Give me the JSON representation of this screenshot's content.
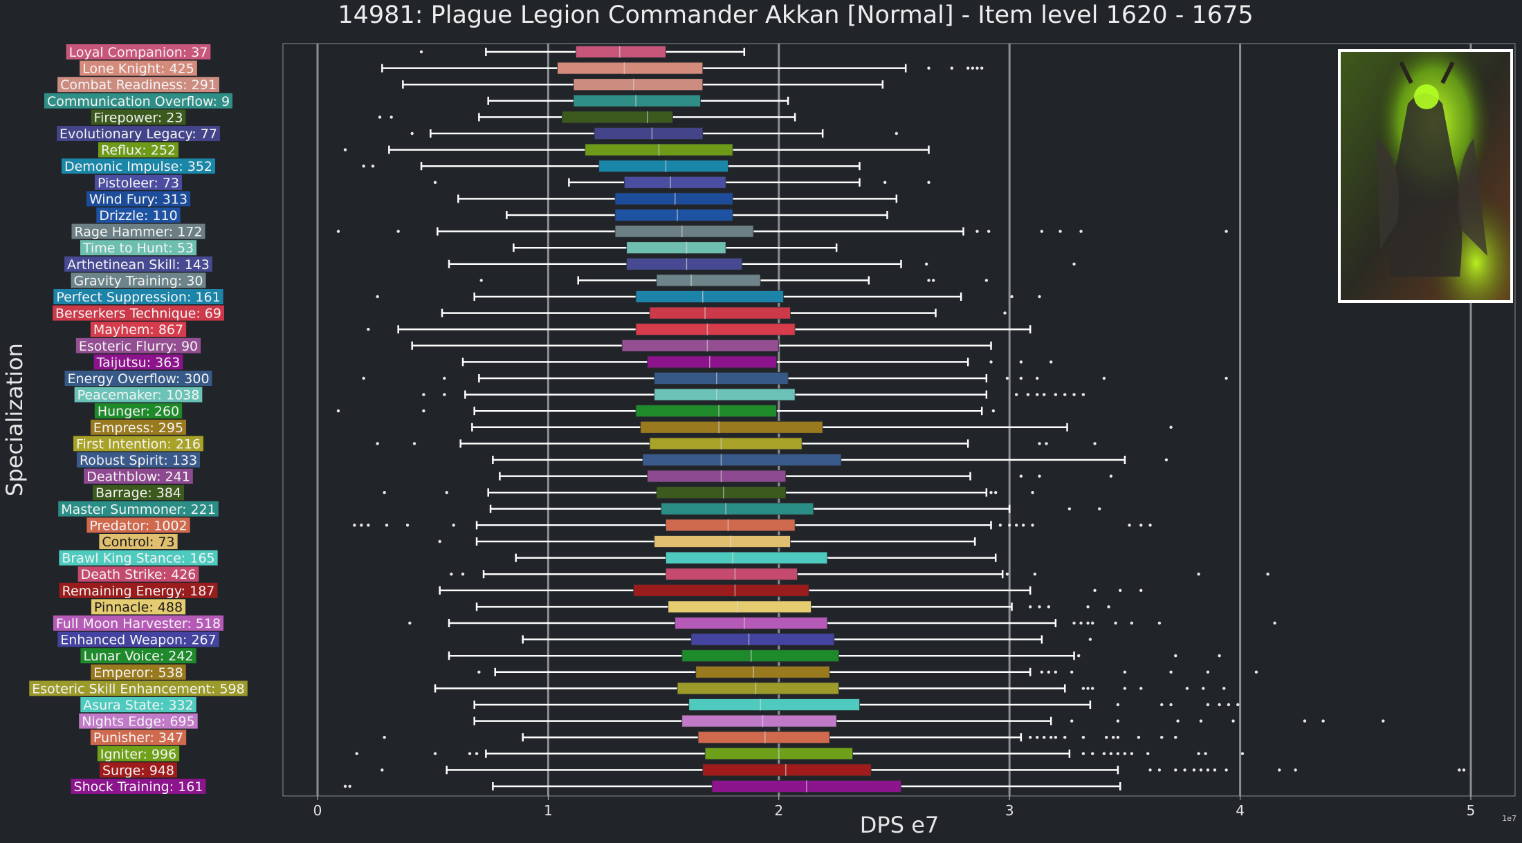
{
  "chart_data": {
    "type": "box",
    "title": "14981: Plague Legion Commander Akkan [Normal] - Item level 1620 - 1675",
    "xlabel": "DPS e7",
    "ylabel": "Specialization",
    "x_multiplier_label": "1e7",
    "xlim": [
      -0.15,
      5.2
    ],
    "xticks": [
      0,
      1,
      2,
      3,
      4,
      5
    ],
    "grid": "vertical",
    "image": "boss-portrait",
    "series": [
      {
        "label": "Loyal Companion: 37",
        "color": "#c8557a",
        "whislo": 0.73,
        "q1": 1.12,
        "med": 1.31,
        "q3": 1.51,
        "whishi": 1.85,
        "fliers": [
          0.45
        ]
      },
      {
        "label": "Lone Knight: 425",
        "color": "#d48b7c",
        "whislo": 0.28,
        "q1": 1.04,
        "med": 1.33,
        "q3": 1.67,
        "whishi": 2.55,
        "fliers": [
          2.65,
          2.75,
          2.82,
          2.84,
          2.86,
          2.88
        ]
      },
      {
        "label": "Combat Readiness: 291",
        "color": "#cd8c80",
        "whislo": 0.37,
        "q1": 1.11,
        "med": 1.37,
        "q3": 1.67,
        "whishi": 2.45,
        "fliers": []
      },
      {
        "label": "Communication Overflow: 9",
        "color": "#2f8f86",
        "whislo": 0.74,
        "q1": 1.11,
        "med": 1.38,
        "q3": 1.66,
        "whishi": 2.04,
        "fliers": []
      },
      {
        "label": "Firepower: 23",
        "color": "#3c5a1e",
        "whislo": 0.7,
        "q1": 1.06,
        "med": 1.43,
        "q3": 1.54,
        "whishi": 2.07,
        "fliers": [
          0.27,
          0.32
        ]
      },
      {
        "label": "Evolutionary Legacy: 77",
        "color": "#44448a",
        "whislo": 0.49,
        "q1": 1.2,
        "med": 1.45,
        "q3": 1.67,
        "whishi": 2.19,
        "fliers": [
          0.41,
          2.51
        ]
      },
      {
        "label": "Reflux: 252",
        "color": "#6e9a1a",
        "whislo": 0.31,
        "q1": 1.16,
        "med": 1.48,
        "q3": 1.8,
        "whishi": 2.65,
        "fliers": [
          0.12
        ]
      },
      {
        "label": "Demonic Impulse: 352",
        "color": "#1a86a8",
        "whislo": 0.45,
        "q1": 1.22,
        "med": 1.51,
        "q3": 1.78,
        "whishi": 2.35,
        "fliers": [
          0.2,
          0.24
        ]
      },
      {
        "label": "Pistoleer: 73",
        "color": "#4b4ea0",
        "whislo": 1.09,
        "q1": 1.33,
        "med": 1.53,
        "q3": 1.77,
        "whishi": 2.35,
        "fliers": [
          0.51,
          2.46,
          2.65
        ]
      },
      {
        "label": "Wind Fury: 313",
        "color": "#1d4d9a",
        "whislo": 0.61,
        "q1": 1.29,
        "med": 1.55,
        "q3": 1.8,
        "whishi": 2.51,
        "fliers": []
      },
      {
        "label": "Drizzle: 110",
        "color": "#1e52a2",
        "whislo": 0.82,
        "q1": 1.29,
        "med": 1.56,
        "q3": 1.8,
        "whishi": 2.47,
        "fliers": []
      },
      {
        "label": "Rage Hammer: 172",
        "color": "#6b7f85",
        "whislo": 0.52,
        "q1": 1.29,
        "med": 1.58,
        "q3": 1.89,
        "whishi": 2.8,
        "fliers": [
          0.09,
          0.35,
          2.86,
          2.91,
          3.14,
          3.22,
          3.31,
          3.94
        ]
      },
      {
        "label": "Time to Hunt: 53",
        "color": "#6fbfb0",
        "whislo": 0.85,
        "q1": 1.34,
        "med": 1.6,
        "q3": 1.77,
        "whishi": 2.25,
        "fliers": []
      },
      {
        "label": "Arthetinean Skill: 143",
        "color": "#474a92",
        "whislo": 0.57,
        "q1": 1.34,
        "med": 1.6,
        "q3": 1.84,
        "whishi": 2.53,
        "fliers": [
          2.64,
          3.28
        ]
      },
      {
        "label": "Gravity Training: 30",
        "color": "#6d858a",
        "whislo": 1.13,
        "q1": 1.47,
        "med": 1.62,
        "q3": 1.92,
        "whishi": 2.39,
        "fliers": [
          0.71,
          2.65,
          2.67,
          2.9
        ]
      },
      {
        "label": "Perfect Suppression: 161",
        "color": "#1b84a8",
        "whislo": 0.68,
        "q1": 1.38,
        "med": 1.67,
        "q3": 2.02,
        "whishi": 2.79,
        "fliers": [
          0.26,
          3.01,
          3.13
        ]
      },
      {
        "label": "Berserkers Technique: 69",
        "color": "#cc3a4a",
        "whislo": 0.54,
        "q1": 1.44,
        "med": 1.68,
        "q3": 2.05,
        "whishi": 2.68,
        "fliers": [
          2.98
        ]
      },
      {
        "label": "Mayhem: 867",
        "color": "#d63c4c",
        "whislo": 0.35,
        "q1": 1.38,
        "med": 1.69,
        "q3": 2.07,
        "whishi": 3.09,
        "fliers": [
          0.22
        ]
      },
      {
        "label": "Esoteric Flurry: 90",
        "color": "#944e92",
        "whislo": 0.41,
        "q1": 1.32,
        "med": 1.69,
        "q3": 2.0,
        "whishi": 2.92,
        "fliers": []
      },
      {
        "label": "Taijutsu: 363",
        "color": "#8c138c",
        "whislo": 0.63,
        "q1": 1.43,
        "med": 1.7,
        "q3": 1.99,
        "whishi": 2.82,
        "fliers": [
          2.92,
          3.05,
          3.18
        ]
      },
      {
        "label": "Energy Overflow: 300",
        "color": "#375988",
        "whislo": 0.7,
        "q1": 1.46,
        "med": 1.73,
        "q3": 2.04,
        "whishi": 2.9,
        "fliers": [
          0.2,
          0.55,
          2.99,
          3.05,
          3.12,
          3.41,
          3.94
        ]
      },
      {
        "label": "Peacemaker: 1038",
        "color": "#6bc3b8",
        "whislo": 0.64,
        "q1": 1.46,
        "med": 1.73,
        "q3": 2.07,
        "whishi": 2.9,
        "fliers": [
          0.46,
          0.55,
          3.03,
          3.08,
          3.12,
          3.15,
          3.2,
          3.24,
          3.28,
          3.32
        ]
      },
      {
        "label": "Hunger: 260",
        "color": "#1e8a2a",
        "whislo": 0.68,
        "q1": 1.38,
        "med": 1.74,
        "q3": 1.99,
        "whishi": 2.88,
        "fliers": [
          0.09,
          0.46,
          2.93
        ]
      },
      {
        "label": "Empress: 295",
        "color": "#9a7a1e",
        "whislo": 0.67,
        "q1": 1.4,
        "med": 1.74,
        "q3": 2.19,
        "whishi": 3.25,
        "fliers": [
          3.7
        ]
      },
      {
        "label": "First Intention: 216",
        "color": "#a8a228",
        "whislo": 0.62,
        "q1": 1.44,
        "med": 1.75,
        "q3": 2.1,
        "whishi": 2.82,
        "fliers": [
          0.26,
          0.42,
          3.13,
          3.16,
          3.37
        ]
      },
      {
        "label": "Robust Spirit: 133",
        "color": "#3a5a8c",
        "whislo": 0.76,
        "q1": 1.41,
        "med": 1.75,
        "q3": 2.27,
        "whishi": 3.5,
        "fliers": [
          3.68
        ]
      },
      {
        "label": "Deathblow: 241",
        "color": "#8e4a90",
        "whislo": 0.79,
        "q1": 1.43,
        "med": 1.75,
        "q3": 2.03,
        "whishi": 2.83,
        "fliers": [
          3.05,
          3.13,
          3.44
        ]
      },
      {
        "label": "Barrage: 384",
        "color": "#3c5a1e",
        "whislo": 0.74,
        "q1": 1.47,
        "med": 1.76,
        "q3": 2.03,
        "whishi": 2.9,
        "fliers": [
          0.29,
          0.56,
          2.92,
          2.94,
          3.1
        ]
      },
      {
        "label": "Master Summoner: 221",
        "color": "#2b8e86",
        "whislo": 0.75,
        "q1": 1.49,
        "med": 1.77,
        "q3": 2.15,
        "whishi": 3.0,
        "fliers": [
          3.26,
          3.39
        ]
      },
      {
        "label": "Predator: 1002",
        "color": "#d06a4e",
        "whislo": 0.69,
        "q1": 1.51,
        "med": 1.78,
        "q3": 2.07,
        "whishi": 2.92,
        "fliers": [
          0.16,
          0.19,
          0.22,
          0.3,
          0.39,
          0.59,
          2.96,
          3.0,
          3.03,
          3.06,
          3.1,
          3.52,
          3.57,
          3.61
        ]
      },
      {
        "label": "Control: 73",
        "color": "#e0c070",
        "whislo": 0.69,
        "q1": 1.46,
        "med": 1.79,
        "q3": 2.05,
        "whishi": 2.85,
        "fliers": [
          0.53
        ]
      },
      {
        "label": "Brawl King Stance: 165",
        "color": "#4ecbbe",
        "whislo": 0.86,
        "q1": 1.51,
        "med": 1.8,
        "q3": 2.21,
        "whishi": 2.94,
        "fliers": []
      },
      {
        "label": "Death Strike: 426",
        "color": "#c44a6e",
        "whislo": 0.72,
        "q1": 1.51,
        "med": 1.81,
        "q3": 2.08,
        "whishi": 2.97,
        "fliers": [
          0.58,
          0.63,
          2.99,
          3.11,
          3.82,
          4.12
        ]
      },
      {
        "label": "Remaining Energy: 187",
        "color": "#9a1c1c",
        "whislo": 0.53,
        "q1": 1.37,
        "med": 1.81,
        "q3": 2.13,
        "whishi": 3.09,
        "fliers": [
          3.37,
          3.48,
          3.57
        ]
      },
      {
        "label": "Pinnacle: 488",
        "color": "#e6cc70",
        "whislo": 0.69,
        "q1": 1.52,
        "med": 1.82,
        "q3": 2.14,
        "whishi": 3.01,
        "fliers": [
          3.09,
          3.13,
          3.17,
          3.34,
          3.43
        ]
      },
      {
        "label": "Full Moon Harvester: 518",
        "color": "#b65ab8",
        "whislo": 0.57,
        "q1": 1.55,
        "med": 1.85,
        "q3": 2.21,
        "whishi": 3.2,
        "fliers": [
          0.4,
          3.28,
          3.31,
          3.34,
          3.36,
          3.46,
          3.53,
          3.65,
          4.15
        ]
      },
      {
        "label": "Enhanced Weapon: 267",
        "color": "#4444a0",
        "whislo": 0.89,
        "q1": 1.62,
        "med": 1.87,
        "q3": 2.24,
        "whishi": 3.14,
        "fliers": [
          3.35
        ]
      },
      {
        "label": "Lunar Voice: 242",
        "color": "#1f8a2c",
        "whislo": 0.57,
        "q1": 1.58,
        "med": 1.88,
        "q3": 2.26,
        "whishi": 3.28,
        "fliers": [
          3.3,
          3.72,
          3.91
        ]
      },
      {
        "label": "Emperor: 538",
        "color": "#9a7a1e",
        "whislo": 0.77,
        "q1": 1.64,
        "med": 1.89,
        "q3": 2.22,
        "whishi": 3.09,
        "fliers": [
          0.7,
          3.14,
          3.17,
          3.2,
          3.27,
          3.5,
          3.7,
          3.86,
          4.07
        ]
      },
      {
        "label": "Esoteric Skill Enhancement: 598",
        "color": "#9c9a2a",
        "whislo": 0.51,
        "q1": 1.56,
        "med": 1.9,
        "q3": 2.26,
        "whishi": 3.24,
        "fliers": [
          3.32,
          3.34,
          3.36,
          3.5,
          3.57,
          3.77,
          3.84,
          3.93
        ]
      },
      {
        "label": "Asura State: 332",
        "color": "#4ecbbe",
        "whislo": 0.68,
        "q1": 1.61,
        "med": 1.92,
        "q3": 2.35,
        "whishi": 3.35,
        "fliers": [
          3.47,
          3.66,
          3.7,
          3.86,
          3.91,
          3.95,
          3.99
        ]
      },
      {
        "label": "Nights Edge: 695",
        "color": "#c07ac8",
        "whislo": 0.68,
        "q1": 1.58,
        "med": 1.93,
        "q3": 2.25,
        "whishi": 3.18,
        "fliers": [
          3.27,
          3.47,
          3.73,
          3.83,
          3.97,
          4.28,
          4.36,
          4.62
        ]
      },
      {
        "label": "Punisher: 347",
        "color": "#d06a4e",
        "whislo": 0.89,
        "q1": 1.65,
        "med": 1.94,
        "q3": 2.22,
        "whishi": 3.05,
        "fliers": [
          0.29,
          3.09,
          3.12,
          3.15,
          3.18,
          3.2,
          3.24,
          3.32,
          3.42,
          3.45,
          3.47,
          3.56,
          3.66,
          3.72
        ]
      },
      {
        "label": "Igniter: 996",
        "color": "#6ea01a",
        "whislo": 0.73,
        "q1": 1.68,
        "med": 2.0,
        "q3": 2.32,
        "whishi": 3.26,
        "fliers": [
          0.17,
          0.51,
          0.66,
          0.69,
          3.32,
          3.36,
          3.41,
          3.44,
          3.47,
          3.5,
          3.53,
          3.6,
          3.82,
          3.85,
          4.01
        ]
      },
      {
        "label": "Surge: 948",
        "color": "#a01c1c",
        "whislo": 0.56,
        "q1": 1.67,
        "med": 2.03,
        "q3": 2.4,
        "whishi": 3.47,
        "fliers": [
          0.28,
          3.61,
          3.65,
          3.72,
          3.76,
          3.8,
          3.83,
          3.86,
          3.89,
          3.94,
          4.17,
          4.24,
          4.95,
          4.97
        ]
      },
      {
        "label": "Shock Training: 161",
        "color": "#8c148c",
        "whislo": 0.76,
        "q1": 1.71,
        "med": 2.12,
        "q3": 2.53,
        "whishi": 3.48,
        "fliers": [
          0.12,
          0.14
        ]
      }
    ]
  }
}
